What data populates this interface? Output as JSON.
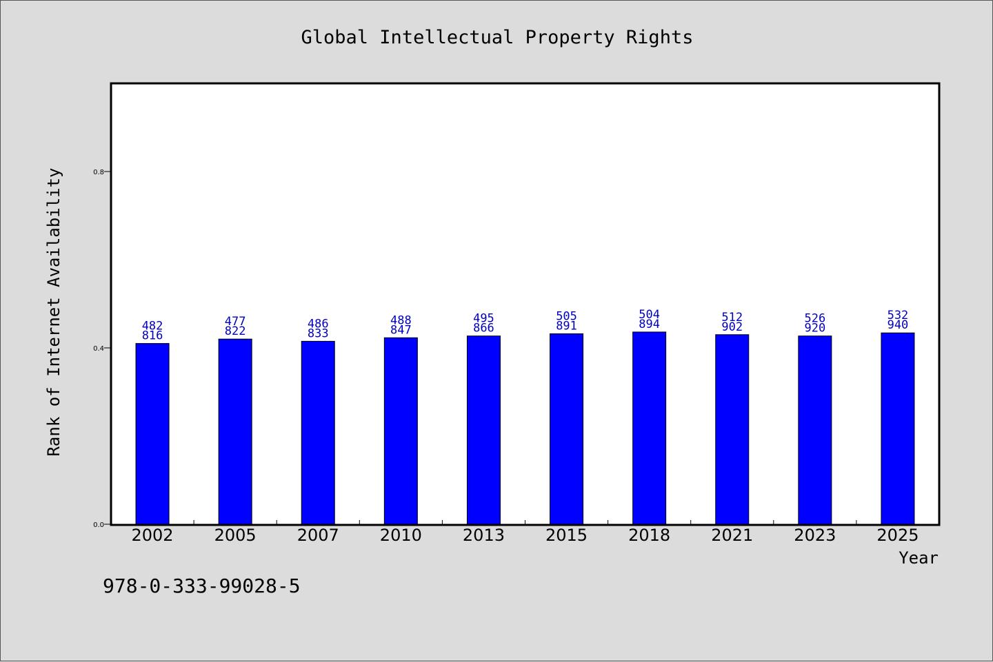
{
  "chart_data": {
    "type": "bar",
    "title": "Global Intellectual Property Rights",
    "xlabel": "Year",
    "ylabel": "Rank of Internet Availability",
    "categories": [
      "2002",
      "2005",
      "2007",
      "2010",
      "2013",
      "2015",
      "2018",
      "2021",
      "2023",
      "2025"
    ],
    "values": [
      0.41,
      0.42,
      0.415,
      0.423,
      0.427,
      0.432,
      0.436,
      0.43,
      0.427,
      0.434
    ],
    "label_top": [
      "482",
      "477",
      "486",
      "488",
      "495",
      "505",
      "504",
      "512",
      "526",
      "532"
    ],
    "label_bottom": [
      "816",
      "822",
      "833",
      "847",
      "866",
      "891",
      "894",
      "902",
      "920",
      "940"
    ],
    "ylim": [
      0,
      1.0
    ],
    "yticks": [
      0.0,
      0.4,
      0.8
    ],
    "ytick_labels": [
      "0.0",
      "0.4",
      "0.8"
    ],
    "grid": false,
    "colors": {
      "bar": "#0000ff",
      "bar_edge": "#000000",
      "data_label": "#0000c0",
      "plot_bg": "#ffffff",
      "page_bg": "#dcdcdc"
    }
  },
  "footer": {
    "identifier": "978-0-333-99028-5"
  }
}
